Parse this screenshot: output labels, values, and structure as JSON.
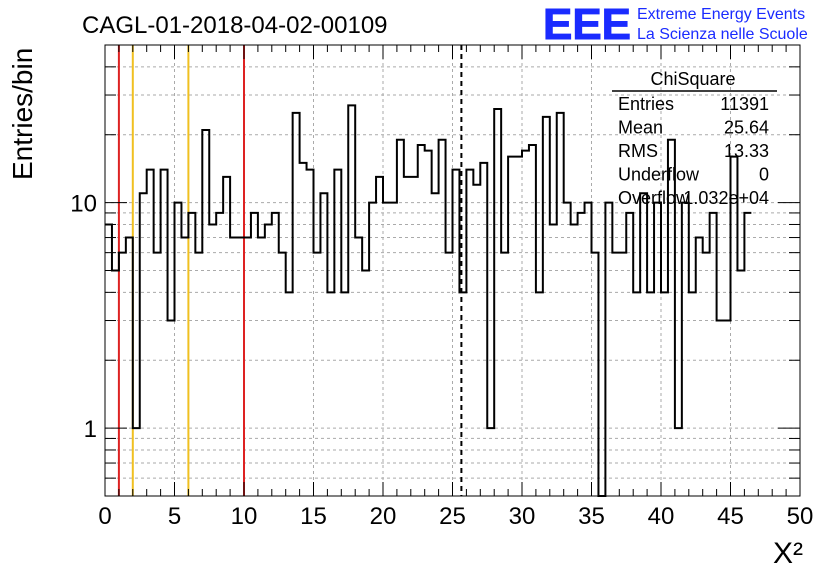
{
  "header": {
    "title": "CAGL-01-2018-04-02-00109",
    "logo_text": "EEE",
    "logo_line1": "Extreme Energy Events",
    "logo_line2": "La Scienza nelle Scuole"
  },
  "stats": {
    "name": "ChiSquare",
    "rows": [
      {
        "label": "Entries",
        "value": "11391"
      },
      {
        "label": "Mean",
        "value": "25.64"
      },
      {
        "label": "RMS",
        "value": "13.33"
      },
      {
        "label": "Underflow",
        "value": "0"
      },
      {
        "label": "Overflow",
        "value": "1.032e+04"
      }
    ]
  },
  "colors": {
    "histogram": "#000000",
    "red_marker": "#dd2222",
    "yellow_marker": "#f0c020",
    "logo": "#1a2bff"
  },
  "chart_data": {
    "type": "histogram",
    "xlabel": "X²",
    "ylabel": "Entries/bin",
    "xlim": [
      0,
      50
    ],
    "ylim": [
      0.5,
      50
    ],
    "yscale": "log",
    "grid": true,
    "legend": "top-right",
    "xticks": [
      "0",
      "5",
      "10",
      "15",
      "20",
      "25",
      "30",
      "35",
      "40",
      "45",
      "50"
    ],
    "yticks": [
      {
        "value": 1,
        "label": "1"
      },
      {
        "value": 10,
        "label": "10"
      }
    ],
    "bin_width": 0.5,
    "bin_values": [
      8,
      5,
      6,
      7,
      1,
      11,
      14,
      6,
      14,
      3,
      10,
      7,
      9,
      6,
      21,
      8,
      9,
      13,
      7,
      7,
      7,
      9,
      7,
      8,
      9,
      6,
      4,
      25,
      15,
      14,
      6,
      11,
      4,
      14,
      4,
      27,
      7,
      5,
      10,
      13,
      10,
      10,
      19,
      13,
      13,
      18,
      17,
      11,
      19,
      6,
      14,
      4,
      14,
      12,
      15,
      1,
      26,
      6,
      16,
      16,
      17,
      18,
      4,
      24,
      8,
      25,
      10,
      8,
      9,
      10,
      6,
      0,
      10,
      6,
      6,
      9,
      4,
      11,
      4,
      10,
      4,
      19,
      1,
      10,
      4,
      7,
      6,
      9,
      3,
      3,
      16,
      5,
      9
    ],
    "vertical_lines": [
      {
        "x": 1,
        "color": "red"
      },
      {
        "x": 2,
        "color": "yellow"
      },
      {
        "x": 6,
        "color": "yellow"
      },
      {
        "x": 10,
        "color": "red"
      },
      {
        "x": 25.64,
        "color": "black",
        "style": "dashed"
      }
    ]
  }
}
